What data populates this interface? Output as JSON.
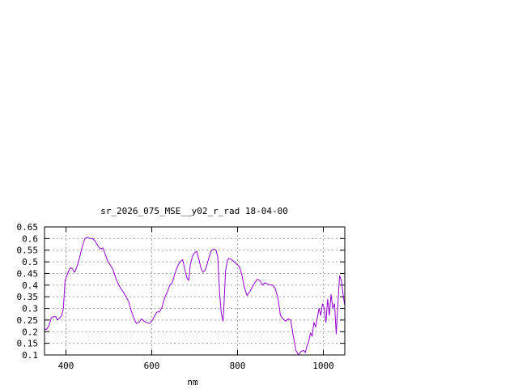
{
  "chart_data": {
    "type": "line",
    "title": "sr_2026_075_MSE__y02_r_rad 18-04-00",
    "xlabel": "nm",
    "ylabel": "",
    "xlim": [
      350,
      1050
    ],
    "ylim": [
      0.1,
      0.65
    ],
    "xticks": [
      400,
      600,
      800,
      1000
    ],
    "yticks": [
      0.1,
      0.15,
      0.2,
      0.25,
      0.3,
      0.35,
      0.4,
      0.45,
      0.5,
      0.55,
      0.6,
      0.65
    ],
    "xtick_labels": [
      "400",
      "600",
      "800",
      "1000"
    ],
    "ytick_labels": [
      "0.1",
      "0.15",
      "0.2",
      "0.25",
      "0.3",
      "0.35",
      "0.4",
      "0.45",
      "0.5",
      "0.55",
      "0.6",
      "0.65"
    ],
    "grid": true,
    "legend": "none",
    "series": [
      {
        "color": "#9400d3",
        "x": [
          350,
          355,
          360,
          366,
          372,
          376,
          380,
          386,
          390,
          394,
          398,
          402,
          406,
          410,
          415,
          420,
          426,
          432,
          438,
          444,
          450,
          456,
          462,
          468,
          474,
          480,
          486,
          490,
          494,
          498,
          504,
          510,
          516,
          522,
          528,
          534,
          540,
          546,
          552,
          558,
          564,
          570,
          576,
          582,
          588,
          594,
          600,
          606,
          612,
          618,
          624,
          630,
          636,
          642,
          648,
          654,
          660,
          666,
          672,
          678,
          682,
          686,
          690,
          695,
          700,
          705,
          710,
          715,
          720,
          726,
          732,
          738,
          744,
          750,
          754,
          758,
          762,
          766,
          768,
          772,
          776,
          780,
          786,
          792,
          798,
          804,
          810,
          816,
          822,
          828,
          834,
          840,
          846,
          852,
          858,
          864,
          870,
          876,
          882,
          888,
          894,
          900,
          906,
          912,
          918,
          924,
          930,
          936,
          942,
          948,
          954,
          958,
          962,
          966,
          970,
          974,
          978,
          982,
          986,
          990,
          994,
          998,
          1002,
          1006,
          1010,
          1014,
          1018,
          1022,
          1026,
          1030,
          1034,
          1038,
          1042,
          1046,
          1050
        ],
        "values": [
          0.21,
          0.21,
          0.225,
          0.26,
          0.265,
          0.265,
          0.25,
          0.26,
          0.27,
          0.3,
          0.42,
          0.44,
          0.46,
          0.475,
          0.47,
          0.455,
          0.48,
          0.52,
          0.565,
          0.6,
          0.605,
          0.6,
          0.6,
          0.59,
          0.57,
          0.555,
          0.56,
          0.54,
          0.52,
          0.5,
          0.485,
          0.465,
          0.43,
          0.405,
          0.385,
          0.37,
          0.35,
          0.33,
          0.29,
          0.26,
          0.235,
          0.24,
          0.255,
          0.245,
          0.24,
          0.235,
          0.245,
          0.265,
          0.285,
          0.285,
          0.305,
          0.345,
          0.37,
          0.4,
          0.41,
          0.45,
          0.48,
          0.5,
          0.51,
          0.46,
          0.43,
          0.42,
          0.49,
          0.525,
          0.54,
          0.545,
          0.51,
          0.47,
          0.455,
          0.47,
          0.51,
          0.545,
          0.555,
          0.55,
          0.52,
          0.37,
          0.28,
          0.245,
          0.3,
          0.46,
          0.505,
          0.515,
          0.51,
          0.5,
          0.49,
          0.48,
          0.445,
          0.39,
          0.355,
          0.37,
          0.39,
          0.41,
          0.425,
          0.42,
          0.4,
          0.41,
          0.405,
          0.4,
          0.4,
          0.385,
          0.345,
          0.27,
          0.255,
          0.245,
          0.255,
          0.25,
          0.18,
          0.12,
          0.1,
          0.115,
          0.12,
          0.11,
          0.14,
          0.16,
          0.195,
          0.18,
          0.24,
          0.22,
          0.26,
          0.3,
          0.27,
          0.32,
          0.3,
          0.24,
          0.34,
          0.27,
          0.36,
          0.3,
          0.32,
          0.19,
          0.32,
          0.44,
          0.42,
          0.36,
          0.31
        ]
      }
    ]
  }
}
